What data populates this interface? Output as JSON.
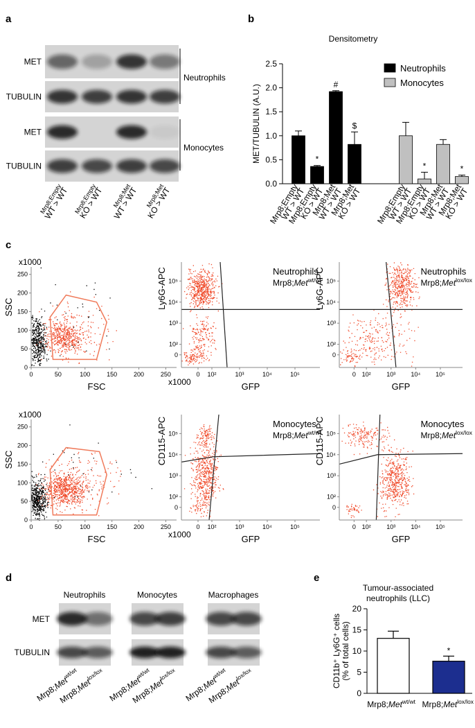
{
  "panel_labels": [
    "a",
    "b",
    "c",
    "d",
    "e"
  ],
  "blot_a": {
    "rows": [
      "MET",
      "TUBULIN",
      "MET",
      "TUBULIN"
    ],
    "groups": [
      "Neutrophils",
      "Monocytes"
    ],
    "lanes": [
      [
        "Mrp8;Empty",
        "WT > WT"
      ],
      [
        "Mrp8;Empty",
        "KO > WT"
      ],
      [
        "Mrp8;Met",
        "WT > WT"
      ],
      [
        "Mrp8;Met",
        "KO > WT"
      ]
    ]
  },
  "chart_data": [
    {
      "type": "bar",
      "title": "Densitometry",
      "ylabel": "MET/TUBULIN (A.U.)",
      "categories": [
        [
          "Mrp8;Empty",
          "WT > WT"
        ],
        [
          "Mrp8;Empty",
          "KO > WT"
        ],
        [
          "Mrp8;Met",
          "WT > WT"
        ],
        [
          "Mrp8;Met",
          "KO > WT"
        ]
      ],
      "ylim": [
        0,
        2.5
      ],
      "yticks": [
        {
          "value": 0,
          "label": "0.0"
        },
        0.5,
        {
          "value": 1,
          "label": "1.0"
        },
        1.5,
        {
          "value": 2,
          "label": "2.0"
        },
        2.5
      ],
      "legend": "upper right",
      "series": [
        {
          "name": "Neutrophils",
          "color": "#000000",
          "values": [
            1.0,
            0.36,
            1.92,
            0.82
          ],
          "errors": [
            0.1,
            0.02,
            0.02,
            0.26
          ],
          "annotations": [
            null,
            "*",
            "#",
            "$"
          ]
        },
        {
          "name": "Monocytes",
          "color": "#c0c0c0",
          "values": [
            1.0,
            0.1,
            0.82,
            0.15
          ],
          "errors": [
            0.28,
            0.14,
            0.1,
            0.03
          ],
          "annotations": [
            null,
            "*",
            null,
            "*"
          ]
        }
      ]
    },
    {
      "type": "bar",
      "title": [
        "Tumour-associated",
        "neutrophils (LLC)"
      ],
      "ylabel": [
        "CD11b⁺ Ly6G⁺ cells",
        "(% of total cells)"
      ],
      "categories": [
        {
          "prefix": "Mrp8;",
          "gene": "Met",
          "sup": "wt/wt"
        },
        {
          "prefix": "Mrp8;",
          "gene": "Met",
          "sup": "lox/lox"
        }
      ],
      "values": [
        13.0,
        7.6
      ],
      "errors": [
        1.7,
        1.2
      ],
      "colors": [
        "#ffffff",
        "#1c2e8f"
      ],
      "annotations": [
        null,
        "*"
      ],
      "ylim": [
        0,
        20
      ],
      "yticks": [
        0,
        5,
        10,
        15,
        20
      ]
    }
  ],
  "flow_plots": [
    {
      "xlabel": "FSC",
      "ylabel": "SSC",
      "scale": "x1000",
      "xlim": [
        0,
        270
      ],
      "ylim": [
        0,
        270
      ],
      "xticks": [
        0,
        50,
        100,
        150,
        200,
        250
      ],
      "yticks": [
        0,
        50,
        100,
        150,
        200,
        250
      ]
    },
    {
      "title": "Neutrophils",
      "genotype": {
        "prefix": "Mrp8;",
        "gene": "Met",
        "sup": "wt/wt"
      },
      "xlabel": "GFP",
      "ylabel": "Ly6G-APC",
      "xticks": [
        0,
        {
          "value": 100,
          "label": "10²"
        },
        {
          "value": 1000,
          "label": "10³"
        },
        {
          "value": 10000,
          "label": "10⁴"
        },
        {
          "value": 100000,
          "label": "10⁵"
        }
      ],
      "yticks": [
        0,
        {
          "value": 100,
          "label": "10²"
        },
        {
          "value": 1000,
          "label": "10³"
        },
        {
          "value": 10000,
          "label": "10⁴"
        },
        {
          "value": 100000,
          "label": "10⁵"
        }
      ]
    },
    {
      "title": "Neutrophils",
      "genotype": {
        "prefix": "Mrp8;",
        "gene": "Met",
        "sup": "lox/lox"
      },
      "xlabel": "GFP",
      "ylabel": "Ly6G-APC",
      "xticks": [
        0,
        {
          "value": 100,
          "label": "10²"
        },
        {
          "value": 1000,
          "label": "10³"
        },
        {
          "value": 10000,
          "label": "10⁴"
        },
        {
          "value": 100000,
          "label": "10⁵"
        }
      ],
      "yticks": [
        0,
        {
          "value": 100,
          "label": "10²"
        },
        {
          "value": 1000,
          "label": "10³"
        },
        {
          "value": 10000,
          "label": "10⁴"
        },
        {
          "value": 100000,
          "label": "10⁵"
        }
      ]
    },
    {
      "xlabel": "FSC",
      "ylabel": "SSC",
      "scale": "x1000",
      "xlim": [
        0,
        270
      ],
      "ylim": [
        0,
        270
      ],
      "xticks": [
        0,
        50,
        100,
        150,
        200,
        250
      ],
      "yticks": [
        0,
        50,
        100,
        150,
        200,
        250
      ]
    },
    {
      "title": "Monocytes",
      "genotype": {
        "prefix": "Mrp8;",
        "gene": "Met",
        "sup": "wt/wt"
      },
      "xlabel": "GFP",
      "ylabel": "CD115-APC",
      "xticks": [
        0,
        {
          "value": 100,
          "label": "10²"
        },
        {
          "value": 1000,
          "label": "10³"
        },
        {
          "value": 10000,
          "label": "10⁴"
        },
        {
          "value": 100000,
          "label": "10⁵"
        }
      ],
      "yticks": [
        0,
        {
          "value": 100,
          "label": "10²"
        },
        {
          "value": 1000,
          "label": "10³"
        },
        {
          "value": 10000,
          "label": "10⁴"
        },
        {
          "value": 100000,
          "label": "10⁵"
        }
      ]
    },
    {
      "title": "Monocytes",
      "genotype": {
        "prefix": "Mrp8;",
        "gene": "Met",
        "sup": "lox/lox"
      },
      "xlabel": "GFP",
      "ylabel": "CD115-APC",
      "xticks": [
        0,
        {
          "value": 100,
          "label": "10²"
        },
        {
          "value": 1000,
          "label": "10³"
        },
        {
          "value": 10000,
          "label": "10⁴"
        },
        {
          "value": 100000,
          "label": "10⁵"
        }
      ],
      "yticks": [
        0,
        {
          "value": 100,
          "label": "10²"
        },
        {
          "value": 1000,
          "label": "10³"
        },
        {
          "value": 10000,
          "label": "10⁴"
        },
        {
          "value": 100000,
          "label": "10⁵"
        }
      ]
    }
  ],
  "blot_d": {
    "rows": [
      "MET",
      "TUBULIN"
    ],
    "groups": [
      "Neutrophils",
      "Monocytes",
      "Macrophages"
    ],
    "lanes": [
      {
        "prefix": "Mrp8;",
        "gene": "Met",
        "sup": "wt/wt"
      },
      {
        "prefix": "Mrp8;",
        "gene": "Met",
        "sup": "lox/lox"
      }
    ]
  }
}
